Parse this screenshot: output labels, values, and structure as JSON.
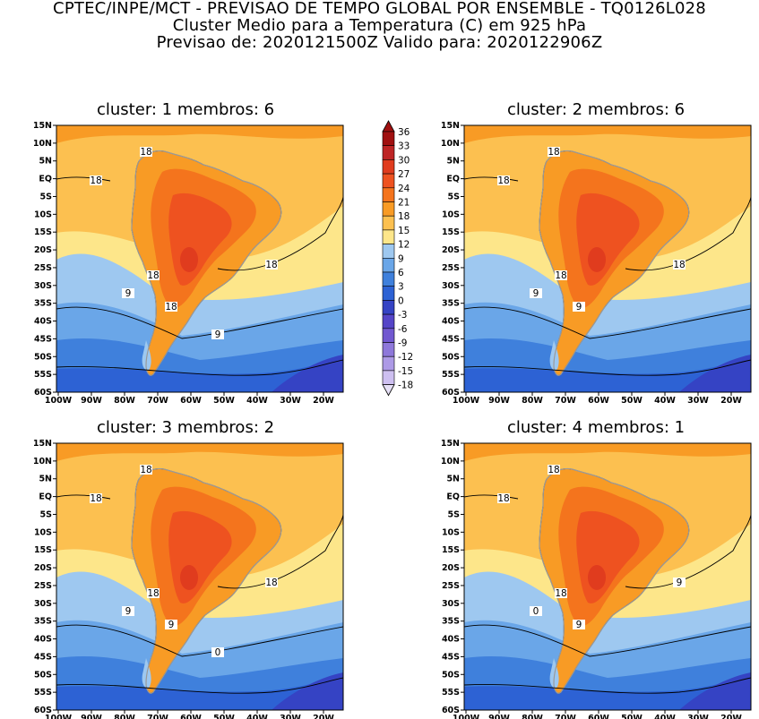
{
  "header": {
    "line1": "CPTEC/INPE/MCT - PREVISAO DE TEMPO GLOBAL POR ENSEMBLE - TQ0126L028",
    "line2": "Cluster Medio para a Temperatura (C) em 925 hPa",
    "line3": "Previsao de: 2020121500Z   Valido para: 2020122906Z"
  },
  "axes": {
    "lat_labels": [
      "15N",
      "10N",
      "5N",
      "EQ",
      "5S",
      "10S",
      "15S",
      "20S",
      "25S",
      "30S",
      "35S",
      "40S",
      "45S",
      "50S",
      "55S",
      "60S"
    ],
    "lon_labels": [
      "100W",
      "90W",
      "80W",
      "70W",
      "60W",
      "50W",
      "40W",
      "30W",
      "20W"
    ]
  },
  "colorbar": {
    "labels": [
      "36",
      "33",
      "30",
      "27",
      "24",
      "21",
      "18",
      "15",
      "12",
      "9",
      "6",
      "3",
      "0",
      "-3",
      "-6",
      "-9",
      "-12",
      "-15",
      "-18"
    ],
    "colors": [
      "#a01010",
      "#be2525",
      "#e03c1e",
      "#ee5220",
      "#f4741d",
      "#f89b25",
      "#fcc050",
      "#fde68a",
      "#9ec8f0",
      "#6aa6e8",
      "#3f80dc",
      "#2d62d4",
      "#3543c4",
      "#5545c8",
      "#7158d0",
      "#8e78da",
      "#ad9ae6",
      "#cdbff0"
    ]
  },
  "panels": [
    {
      "title": "cluster: 1   membros: 6",
      "contour_labels": [
        "18",
        "18",
        "18",
        "18",
        "18",
        "9",
        "9"
      ]
    },
    {
      "title": "cluster: 2   membros: 6",
      "contour_labels": [
        "18",
        "18",
        "18",
        "18",
        "9",
        "9"
      ]
    },
    {
      "title": "cluster: 3   membros: 2",
      "contour_labels": [
        "18",
        "18",
        "18",
        "18",
        "9",
        "9",
        "0"
      ]
    },
    {
      "title": "cluster: 4   membros: 1",
      "contour_labels": [
        "18",
        "18",
        "18",
        "9",
        "9",
        "0"
      ]
    }
  ]
}
